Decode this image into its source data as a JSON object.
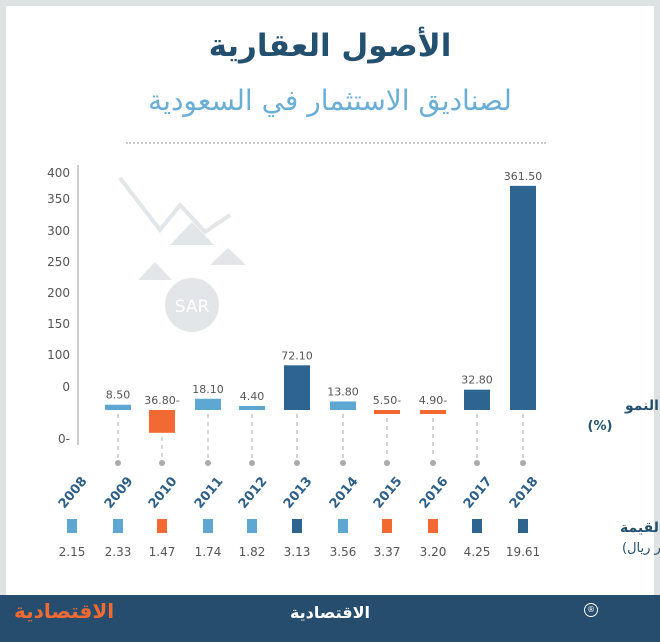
{
  "title": "الأصول العقارية",
  "subtitle": "لصناديق الاستثمار  في السعودية",
  "growth_label": "نسبة النمو",
  "growth_unit": "(%)",
  "value_label": "القيمة",
  "value_unit": "(مليار ريال)",
  "watermark_text": "SAR",
  "footer": {
    "logo_left": "الاقتصادية",
    "logo_center": "الاقتصادية",
    "registered": "®"
  },
  "colors": {
    "dark": "#2e6590",
    "light": "#5ea7d3",
    "negative": "#f26a32"
  },
  "chart_data": {
    "type": "bar",
    "ylabel": "نسبة النمو (%)",
    "yticks": [
      "400",
      "350",
      "300",
      "250",
      "200",
      "150",
      "100",
      "0",
      "0-"
    ],
    "ylim": [
      -50,
      400
    ],
    "categories": [
      "2008",
      "2009",
      "2010",
      "2011",
      "2012",
      "2013",
      "2014",
      "2015",
      "2016",
      "2017",
      "2018"
    ],
    "growth": [
      null,
      8.5,
      -36.8,
      18.1,
      4.4,
      72.1,
      13.8,
      -5.5,
      -4.9,
      32.8,
      361.5
    ],
    "growth_labels": [
      "",
      "8.50",
      "36.80-",
      "18.10",
      "4.40",
      "72.10",
      "13.80",
      "5.50-",
      "4.90-",
      "32.80",
      "361.50"
    ],
    "values": [
      "2.15",
      "2.33",
      "1.47",
      "1.74",
      "1.82",
      "3.13",
      "3.56",
      "3.37",
      "3.20",
      "4.25",
      "19.61"
    ],
    "marker_colors": [
      "light",
      "light",
      "negative",
      "light",
      "light",
      "dark",
      "light",
      "negative",
      "negative",
      "dark",
      "dark"
    ]
  }
}
